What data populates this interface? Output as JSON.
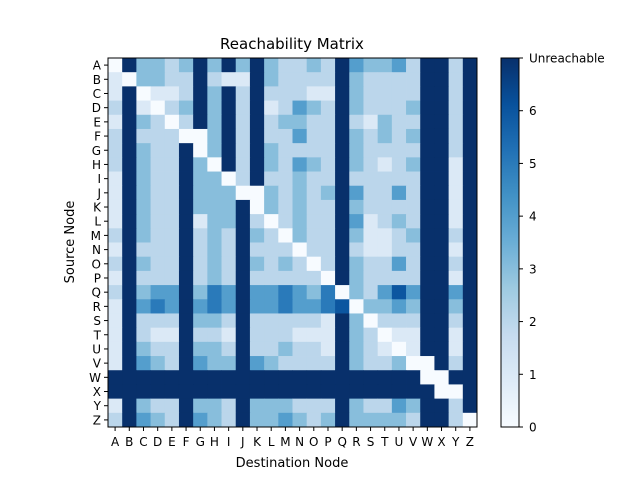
{
  "chart_data": {
    "type": "heatmap",
    "title": "Reachability Matrix",
    "xlabel": "Destination Node",
    "ylabel": "Source Node",
    "rows": [
      "A",
      "B",
      "C",
      "D",
      "E",
      "F",
      "G",
      "H",
      "I",
      "J",
      "K",
      "L",
      "M",
      "N",
      "O",
      "P",
      "Q",
      "R",
      "S",
      "T",
      "U",
      "V",
      "W",
      "X",
      "Y",
      "Z"
    ],
    "cols": [
      "A",
      "B",
      "C",
      "D",
      "E",
      "F",
      "G",
      "H",
      "I",
      "J",
      "K",
      "L",
      "M",
      "N",
      "O",
      "P",
      "Q",
      "R",
      "S",
      "T",
      "U",
      "V",
      "W",
      "X",
      "Y",
      "Z"
    ],
    "values": [
      [
        0,
        7,
        3,
        3,
        2,
        3,
        7,
        3,
        7,
        3,
        7,
        3,
        2,
        2,
        3,
        2,
        7,
        4,
        3,
        3,
        4,
        2,
        7,
        7,
        2,
        7
      ],
      [
        1,
        0,
        3,
        3,
        2,
        2,
        7,
        2,
        1,
        1,
        7,
        3,
        2,
        2,
        2,
        2,
        7,
        3,
        2,
        2,
        2,
        2,
        7,
        7,
        2,
        7
      ],
      [
        1,
        7,
        0,
        1,
        1,
        2,
        7,
        3,
        7,
        2,
        7,
        2,
        2,
        2,
        1,
        1,
        7,
        3,
        2,
        2,
        2,
        2,
        7,
        7,
        2,
        7
      ],
      [
        2,
        7,
        1,
        0,
        2,
        3,
        7,
        3,
        7,
        2,
        7,
        1,
        2,
        4,
        3,
        2,
        7,
        3,
        2,
        2,
        2,
        3,
        7,
        7,
        2,
        7
      ],
      [
        1,
        7,
        3,
        2,
        0,
        2,
        7,
        3,
        7,
        2,
        7,
        2,
        3,
        3,
        2,
        2,
        7,
        2,
        1,
        3,
        2,
        2,
        7,
        7,
        2,
        7
      ],
      [
        2,
        7,
        2,
        2,
        2,
        0,
        0,
        3,
        7,
        2,
        7,
        2,
        2,
        4,
        2,
        2,
        7,
        3,
        2,
        3,
        2,
        3,
        7,
        7,
        2,
        7
      ],
      [
        2,
        7,
        3,
        2,
        2,
        7,
        0,
        3,
        7,
        2,
        7,
        3,
        2,
        2,
        2,
        2,
        7,
        3,
        2,
        2,
        2,
        2,
        7,
        7,
        2,
        7
      ],
      [
        2,
        7,
        3,
        2,
        2,
        7,
        3,
        0,
        7,
        2,
        7,
        3,
        2,
        4,
        3,
        2,
        7,
        3,
        2,
        1,
        2,
        3,
        7,
        7,
        1,
        7
      ],
      [
        1,
        7,
        3,
        2,
        2,
        7,
        3,
        3,
        0,
        2,
        7,
        2,
        2,
        3,
        2,
        2,
        7,
        2,
        2,
        2,
        2,
        2,
        7,
        7,
        1,
        7
      ],
      [
        1,
        7,
        3,
        2,
        2,
        7,
        3,
        3,
        3,
        0,
        0,
        3,
        2,
        3,
        2,
        3,
        7,
        4,
        2,
        2,
        4,
        2,
        7,
        7,
        1,
        7
      ],
      [
        1,
        7,
        3,
        2,
        2,
        7,
        3,
        3,
        3,
        7,
        0,
        3,
        2,
        3,
        2,
        2,
        7,
        3,
        2,
        2,
        2,
        2,
        7,
        7,
        1,
        7
      ],
      [
        1,
        7,
        3,
        2,
        2,
        7,
        1,
        3,
        3,
        7,
        2,
        0,
        2,
        3,
        2,
        2,
        7,
        4,
        1,
        2,
        3,
        2,
        7,
        7,
        1,
        7
      ],
      [
        2,
        7,
        3,
        2,
        2,
        7,
        2,
        3,
        2,
        7,
        3,
        2,
        0,
        3,
        2,
        2,
        7,
        3,
        1,
        1,
        2,
        3,
        7,
        7,
        2,
        7
      ],
      [
        1,
        7,
        2,
        2,
        2,
        7,
        2,
        3,
        2,
        7,
        2,
        2,
        2,
        0,
        2,
        2,
        7,
        2,
        1,
        1,
        2,
        2,
        7,
        7,
        1,
        7
      ],
      [
        2,
        7,
        3,
        2,
        2,
        7,
        2,
        3,
        2,
        7,
        3,
        2,
        3,
        2,
        0,
        2,
        7,
        3,
        2,
        2,
        4,
        2,
        7,
        7,
        2,
        7
      ],
      [
        1,
        7,
        2,
        2,
        2,
        7,
        2,
        3,
        2,
        7,
        2,
        2,
        2,
        2,
        2,
        0,
        7,
        3,
        2,
        2,
        2,
        2,
        7,
        7,
        1,
        7
      ],
      [
        2,
        7,
        3,
        4,
        4,
        7,
        3,
        5,
        4,
        7,
        4,
        4,
        5,
        4,
        3,
        5,
        0,
        3,
        2,
        4,
        6,
        4,
        7,
        7,
        4,
        7
      ],
      [
        1,
        7,
        4,
        5,
        4,
        7,
        4,
        5,
        4,
        7,
        4,
        4,
        5,
        4,
        4,
        5,
        6,
        0,
        3,
        3,
        4,
        3,
        7,
        7,
        3,
        7
      ],
      [
        1,
        7,
        2,
        2,
        2,
        7,
        3,
        3,
        2,
        7,
        2,
        2,
        2,
        2,
        2,
        1,
        7,
        3,
        0,
        2,
        2,
        2,
        7,
        7,
        2,
        7
      ],
      [
        1,
        7,
        2,
        1,
        1,
        7,
        2,
        2,
        1,
        7,
        2,
        2,
        2,
        1,
        1,
        1,
        7,
        3,
        2,
        0,
        1,
        1,
        7,
        7,
        1,
        7
      ],
      [
        1,
        7,
        3,
        2,
        2,
        7,
        3,
        3,
        2,
        7,
        2,
        2,
        3,
        2,
        2,
        1,
        7,
        3,
        2,
        1,
        0,
        1,
        7,
        7,
        1,
        7
      ],
      [
        1,
        7,
        4,
        3,
        2,
        7,
        4,
        3,
        3,
        7,
        4,
        3,
        2,
        2,
        2,
        2,
        7,
        3,
        2,
        2,
        3,
        0,
        0,
        7,
        2,
        7
      ],
      [
        7,
        7,
        7,
        7,
        7,
        7,
        7,
        7,
        7,
        7,
        7,
        7,
        7,
        7,
        7,
        7,
        7,
        7,
        7,
        7,
        7,
        7,
        0,
        0,
        7,
        7
      ],
      [
        7,
        7,
        7,
        7,
        7,
        7,
        7,
        7,
        7,
        7,
        7,
        7,
        7,
        7,
        7,
        7,
        7,
        7,
        7,
        7,
        7,
        7,
        7,
        0,
        0,
        7
      ],
      [
        1,
        7,
        3,
        2,
        2,
        7,
        3,
        3,
        2,
        7,
        3,
        3,
        3,
        2,
        2,
        2,
        7,
        3,
        2,
        2,
        4,
        3,
        7,
        7,
        2,
        7
      ],
      [
        2,
        7,
        4,
        3,
        2,
        7,
        4,
        3,
        2,
        7,
        3,
        3,
        4,
        3,
        2,
        3,
        7,
        3,
        3,
        3,
        3,
        2,
        7,
        7,
        2,
        0
      ]
    ],
    "unreachable_value": 7,
    "colorbar": {
      "ticks": [
        "0",
        "1",
        "2",
        "3",
        "4",
        "5",
        "6",
        "Unreachable"
      ],
      "range": [
        0,
        7
      ]
    },
    "colormap": [
      "#f7fbff",
      "#deebf7",
      "#c6dbef",
      "#9ecae1",
      "#6baed6",
      "#4292c6",
      "#2171b5",
      "#08519c",
      "#08306b"
    ],
    "grid": false
  }
}
